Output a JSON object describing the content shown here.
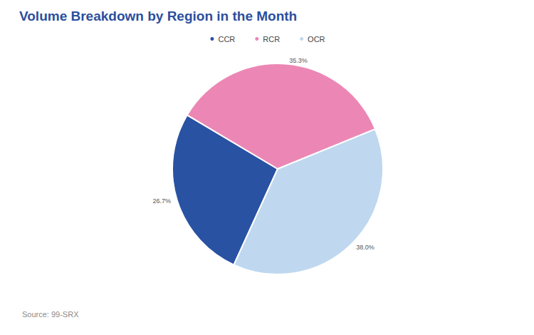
{
  "chart_data": {
    "type": "pie",
    "title": "Volume Breakdown by Region in the Month",
    "categories": [
      "CCR",
      "RCR",
      "OCR"
    ],
    "values": [
      26.7,
      35.3,
      38.0
    ],
    "value_labels": [
      "26.7%",
      "35.3%",
      "38.0%"
    ],
    "colors": [
      "#2a52a3",
      "#ec87b5",
      "#bfd8ef"
    ],
    "data_labels": true,
    "legend": "top",
    "source": "Source: 99-SRX"
  }
}
